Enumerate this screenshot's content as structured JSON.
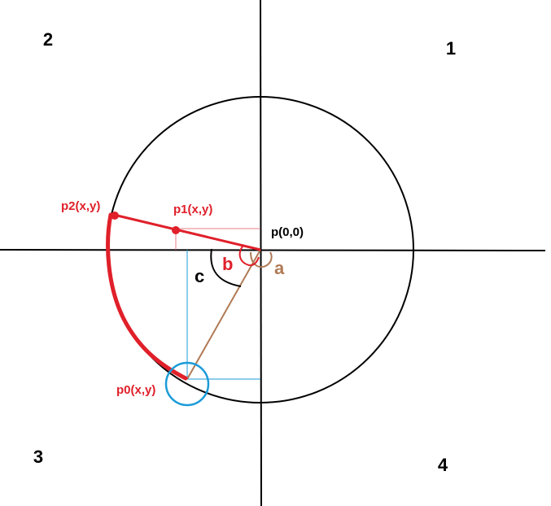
{
  "quadrants": {
    "q1": "1",
    "q2": "2",
    "q3": "3",
    "q4": "4"
  },
  "points": {
    "origin": "p(0,0)",
    "p1": "p1(x,y)",
    "p2": "p2(x,y)",
    "p0": "p0(x,y)"
  },
  "angles": {
    "a": "a",
    "b": "b",
    "c": "c"
  },
  "colors": {
    "axis": "#000000",
    "circle": "#000000",
    "red": "#e0202a",
    "brown": "#b07a55",
    "blue": "#1a9bd8",
    "pink": "#e87c84"
  }
}
